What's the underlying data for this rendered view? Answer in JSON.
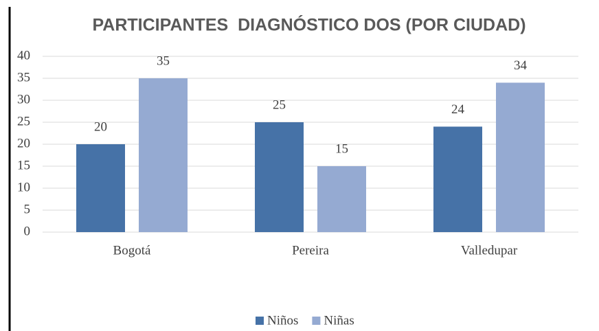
{
  "chart_data": {
    "type": "bar",
    "title": "PARTICIPANTES  DIAGNÓSTICO DOS (POR CIUDAD)",
    "categories": [
      "Bogotá",
      "Pereira",
      "Valledupar"
    ],
    "series": [
      {
        "name": "Niños",
        "color": "#4672a7",
        "values": [
          20,
          25,
          24
        ]
      },
      {
        "name": "Niñas",
        "color": "#95aad2",
        "values": [
          35,
          15,
          34
        ]
      }
    ],
    "ylim": [
      0,
      40
    ],
    "yticks": [
      0,
      5,
      10,
      15,
      20,
      25,
      30,
      35,
      40
    ],
    "grid": true,
    "legend": "bottom"
  }
}
